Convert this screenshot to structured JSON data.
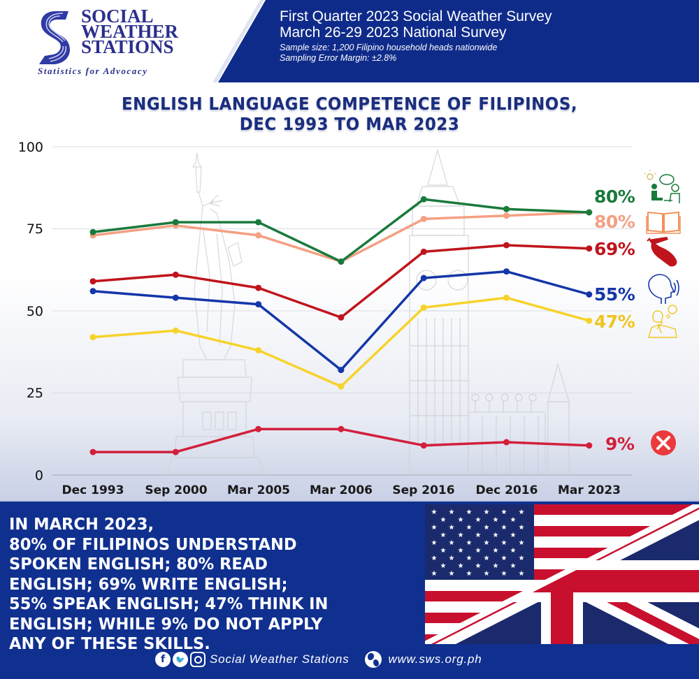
{
  "header": {
    "logo": {
      "line1": "SOCIAL",
      "line2": "WEATHER",
      "line3": "STATIONS",
      "tagline": "Statistics for Advocacy"
    },
    "survey": {
      "line1": "First Quarter 2023 Social Weather Survey",
      "line2": "March 26-29 2023 National Survey",
      "sample": "Sample size: 1,200 Filipino household heads nationwide",
      "margin": "Sampling Error Margin: ±2.8%"
    },
    "banner_color": "#0f2b8a"
  },
  "title": {
    "line1": "ENGLISH LANGUAGE COMPETENCE OF FILIPINOS,",
    "line2": "DEC 1993 TO MAR 2023"
  },
  "chart_data": {
    "type": "line",
    "title": "English Language Competence of Filipinos, Dec 1993 to Mar 2023",
    "xlabel": "",
    "ylabel": "",
    "ylim": [
      0,
      100
    ],
    "yticks": [
      0,
      25,
      50,
      75,
      100
    ],
    "grid": true,
    "legend_position": "right (end labels with icons)",
    "categories": [
      "Dec 1993",
      "Sep 2000",
      "Mar 2005",
      "Mar 2006",
      "Sep 2016",
      "Dec 2016",
      "Mar 2023"
    ],
    "series": [
      {
        "name": "Understand spoken English",
        "icon": "conversation-icon",
        "color": "#1a7a3c",
        "values": [
          74,
          77,
          77,
          65,
          84,
          81,
          80
        ],
        "end_label": "80%"
      },
      {
        "name": "Read English",
        "icon": "book-icon",
        "color": "#f4a082",
        "values": [
          73,
          76,
          73,
          65,
          78,
          79,
          80
        ],
        "end_label": "80%"
      },
      {
        "name": "Write English",
        "icon": "writing-hand-icon",
        "color": "#c0141c",
        "values": [
          59,
          61,
          57,
          48,
          68,
          70,
          69
        ],
        "end_label": "69%"
      },
      {
        "name": "Speak English",
        "icon": "speaking-head-icon",
        "color": "#1436a8",
        "values": [
          56,
          54,
          52,
          32,
          60,
          62,
          55
        ],
        "end_label": "55%"
      },
      {
        "name": "Think in English",
        "icon": "thinking-person-icon",
        "color": "#f6d32a",
        "values": [
          42,
          44,
          38,
          27,
          51,
          54,
          47
        ],
        "end_label": "47%"
      },
      {
        "name": "Do not apply any of these skills",
        "icon": "x-circle-icon",
        "color": "#d21f3c",
        "values": [
          7,
          7,
          14,
          14,
          9,
          10,
          9
        ],
        "end_label": "9%"
      }
    ]
  },
  "summary": {
    "lines": [
      "IN MARCH 2023,",
      "80% OF FILIPINOS UNDERSTAND",
      "SPOKEN ENGLISH; 80% READ",
      "ENGLISH; 69% WRITE ENGLISH;",
      "55% SPEAK ENGLISH; 47% THINK IN",
      "ENGLISH; WHILE 9% DO NOT APPLY",
      "ANY OF THESE SKILLS."
    ]
  },
  "footer": {
    "social_name": "Social Weather Stations",
    "website": "www.sws.org.ph",
    "icons": [
      "facebook-icon",
      "twitter-icon",
      "instagram-icon",
      "globe-icon"
    ]
  }
}
